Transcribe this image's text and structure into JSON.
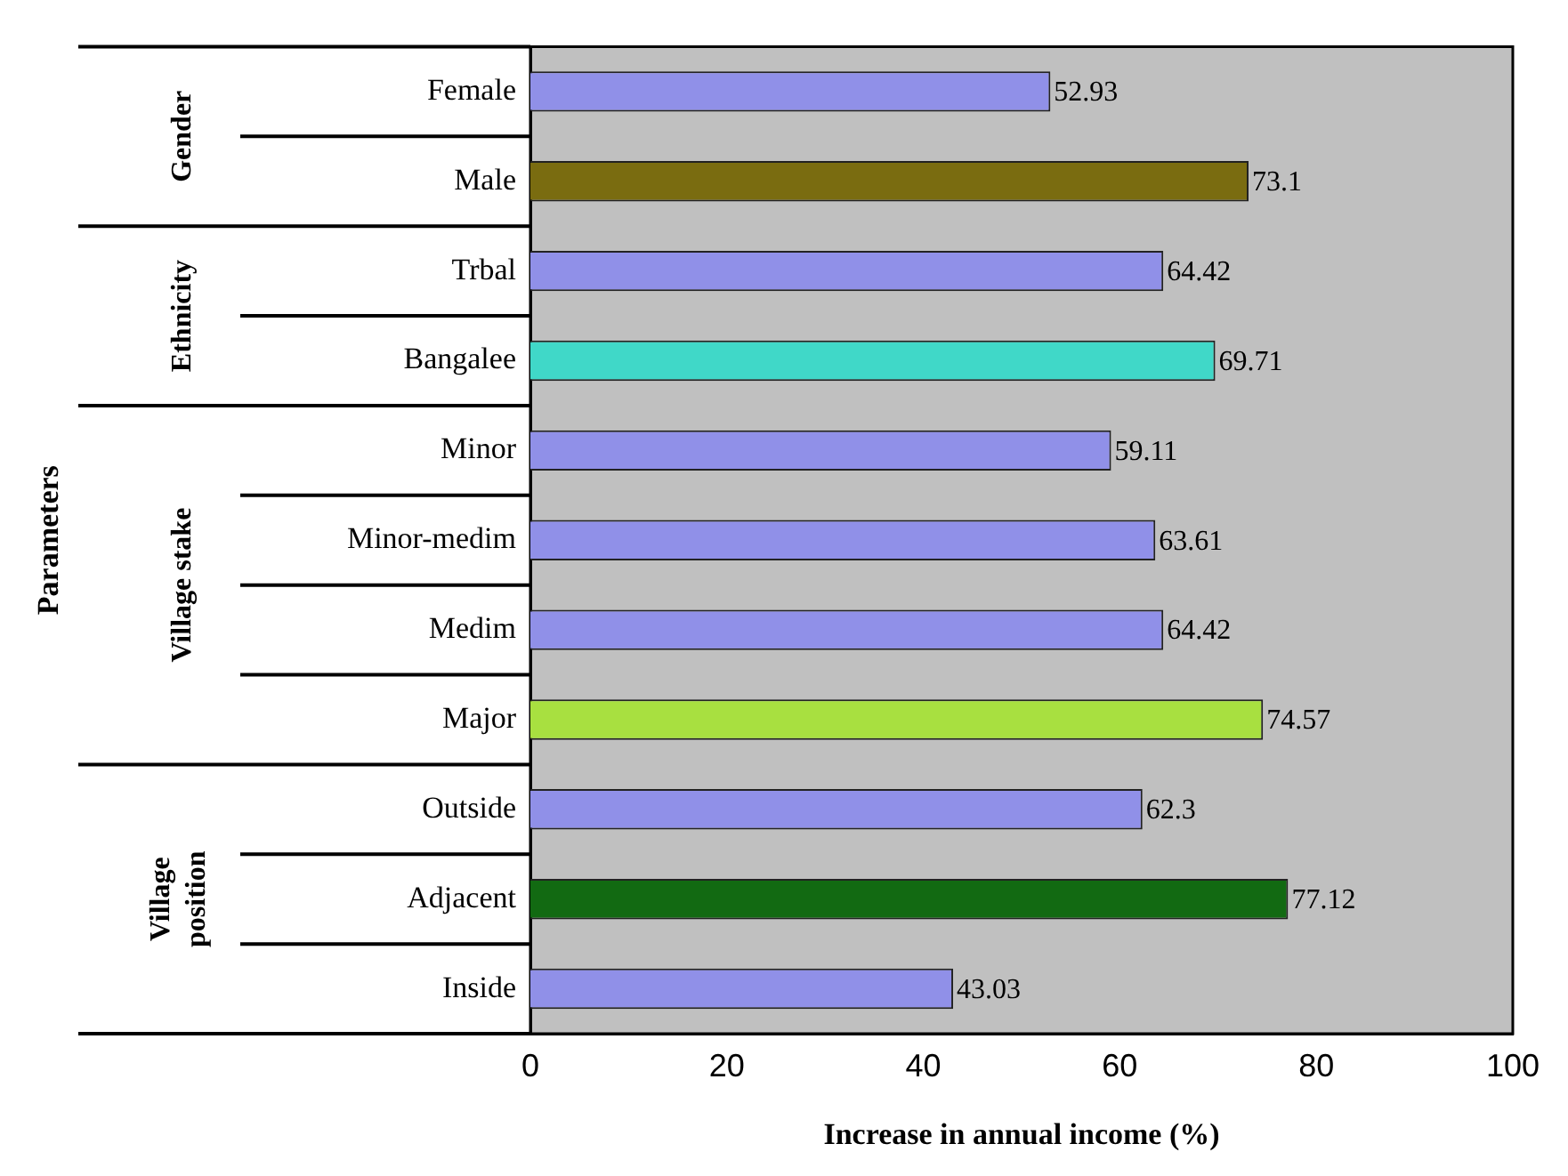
{
  "chart_data": {
    "type": "bar",
    "orientation": "horizontal",
    "xlabel": "Increase in annual income (%)",
    "categories": [
      "Female",
      "Male",
      "Trbal",
      "Bangalee",
      "Minor",
      "Minor-medim",
      "Medim",
      "Major",
      "Outside",
      "Adjacent",
      "Inside"
    ],
    "values": [
      52.93,
      73.1,
      64.42,
      69.71,
      59.11,
      63.61,
      64.42,
      74.57,
      62.3,
      77.12,
      43.03
    ],
    "colors": [
      "#9090e8",
      "#7a6c10",
      "#9090e8",
      "#40d8c8",
      "#9090e8",
      "#9090e8",
      "#9090e8",
      "#a8e040",
      "#9090e8",
      "#126a12",
      "#9090e8"
    ],
    "xlim": [
      0,
      100
    ],
    "xticks": [
      0,
      20,
      40,
      60,
      80,
      100
    ],
    "grid": false,
    "legend": false,
    "data_labels": true,
    "annotations": [
      "Gender",
      "Ethnicity",
      "Village stake",
      "Village position",
      "Parameters"
    ]
  }
}
